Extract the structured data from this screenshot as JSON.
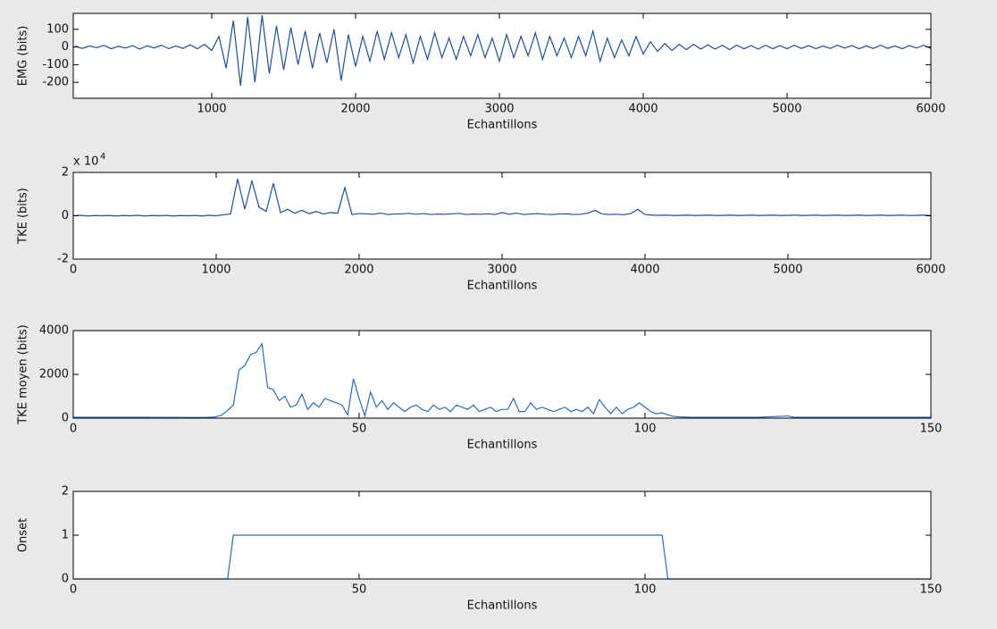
{
  "chart_data": [
    {
      "type": "line",
      "xlabel": "Echantillons",
      "ylabel": "EMG (bits)",
      "xlim": [
        37,
        6000
      ],
      "ylim": [
        -290,
        190
      ],
      "xticks": [
        1000,
        2000,
        3000,
        4000,
        5000,
        6000
      ],
      "yticks": [
        -200,
        -100,
        0,
        100
      ],
      "x": [
        50,
        100,
        150,
        200,
        250,
        300,
        350,
        400,
        450,
        500,
        550,
        600,
        650,
        700,
        750,
        800,
        850,
        900,
        950,
        1000,
        1050,
        1100,
        1150,
        1200,
        1250,
        1300,
        1350,
        1400,
        1450,
        1500,
        1550,
        1600,
        1650,
        1700,
        1750,
        1800,
        1850,
        1900,
        1950,
        2000,
        2050,
        2100,
        2150,
        2200,
        2250,
        2300,
        2350,
        2400,
        2450,
        2500,
        2550,
        2600,
        2650,
        2700,
        2750,
        2800,
        2850,
        2900,
        2950,
        3000,
        3050,
        3100,
        3150,
        3200,
        3250,
        3300,
        3350,
        3400,
        3450,
        3500,
        3550,
        3600,
        3650,
        3700,
        3750,
        3800,
        3850,
        3900,
        3950,
        4000,
        4050,
        4100,
        4150,
        4200,
        4250,
        4300,
        4350,
        4400,
        4450,
        4500,
        4550,
        4600,
        4650,
        4700,
        4750,
        4800,
        4850,
        4900,
        4950,
        5000,
        5050,
        5100,
        5150,
        5200,
        5250,
        5300,
        5350,
        5400,
        5450,
        5500,
        5550,
        5600,
        5650,
        5700,
        5750,
        5800,
        5850,
        5900,
        5950,
        6000
      ],
      "series": [
        {
          "color": "#1f4f96",
          "values": [
            5,
            -8,
            6,
            -4,
            9,
            -10,
            4,
            -6,
            8,
            -12,
            7,
            -5,
            10,
            -9,
            6,
            -8,
            12,
            -10,
            15,
            -20,
            60,
            -120,
            150,
            -220,
            170,
            -200,
            180,
            -150,
            120,
            -130,
            110,
            -100,
            90,
            -120,
            80,
            -90,
            100,
            -190,
            70,
            -110,
            60,
            -80,
            90,
            -70,
            80,
            -60,
            70,
            -90,
            60,
            -70,
            80,
            -60,
            50,
            -70,
            60,
            -50,
            70,
            -60,
            50,
            -80,
            70,
            -60,
            60,
            -50,
            80,
            -70,
            60,
            -50,
            50,
            -60,
            60,
            -50,
            90,
            -80,
            50,
            -60,
            40,
            -50,
            60,
            -40,
            30,
            -25,
            20,
            -20,
            15,
            -15,
            15,
            -12,
            12,
            -12,
            10,
            -15,
            10,
            -10,
            8,
            -12,
            10,
            -10,
            8,
            -10,
            10,
            -8,
            8,
            -10,
            6,
            -8,
            10,
            -6,
            8,
            -10,
            6,
            -8,
            10,
            -8,
            6,
            -10,
            8,
            -6,
            10,
            -8
          ]
        }
      ]
    },
    {
      "type": "line",
      "xlabel": "Echantillons",
      "ylabel": "TKE (bits)",
      "exponent_base": "x 10",
      "exponent": "4",
      "xlim": [
        0,
        6000
      ],
      "ylim": [
        -20000,
        20000
      ],
      "xticks": [
        0,
        1000,
        2000,
        3000,
        4000,
        5000,
        6000
      ],
      "yticks": [
        {
          "value": -20000,
          "label": "-2"
        },
        0,
        {
          "value": 20000,
          "label": "2"
        }
      ],
      "x": [
        0,
        50,
        100,
        150,
        200,
        250,
        300,
        350,
        400,
        450,
        500,
        550,
        600,
        650,
        700,
        750,
        800,
        850,
        900,
        950,
        1000,
        1050,
        1100,
        1150,
        1200,
        1250,
        1300,
        1350,
        1400,
        1450,
        1500,
        1550,
        1600,
        1650,
        1700,
        1750,
        1800,
        1850,
        1900,
        1950,
        2000,
        2050,
        2100,
        2150,
        2200,
        2250,
        2300,
        2350,
        2400,
        2450,
        2500,
        2550,
        2600,
        2650,
        2700,
        2750,
        2800,
        2850,
        2900,
        2950,
        3000,
        3050,
        3100,
        3150,
        3200,
        3250,
        3300,
        3350,
        3400,
        3450,
        3500,
        3550,
        3600,
        3650,
        3700,
        3750,
        3800,
        3850,
        3900,
        3950,
        4000,
        4050,
        4100,
        4150,
        4200,
        4250,
        4300,
        4350,
        4400,
        4450,
        4500,
        4550,
        4600,
        4650,
        4700,
        4750,
        4800,
        4850,
        4900,
        4950,
        5000,
        5050,
        5100,
        5150,
        5200,
        5250,
        5300,
        5350,
        5400,
        5450,
        5500,
        5550,
        5600,
        5650,
        5700,
        5750,
        5800,
        5850,
        5900,
        5950,
        6000
      ],
      "series": [
        {
          "color": "#1f4f96",
          "values": [
            0,
            200,
            -100,
            100,
            0,
            150,
            -100,
            100,
            0,
            200,
            -100,
            100,
            0,
            150,
            -100,
            100,
            0,
            150,
            -100,
            200,
            0,
            500,
            800,
            17000,
            3000,
            16000,
            4000,
            2000,
            15000,
            1500,
            3000,
            1200,
            2500,
            1000,
            2000,
            800,
            1500,
            1200,
            13000,
            600,
            1000,
            900,
            700,
            1200,
            600,
            800,
            900,
            1100,
            700,
            1000,
            600,
            800,
            700,
            900,
            1100,
            600,
            800,
            700,
            900,
            600,
            1500,
            700,
            1200,
            600,
            800,
            1000,
            700,
            600,
            800,
            900,
            600,
            700,
            1200,
            2500,
            800,
            600,
            700,
            500,
            1000,
            3000,
            600,
            300,
            200,
            300,
            100,
            200,
            300,
            100,
            200,
            300,
            100,
            200,
            300,
            100,
            200,
            300,
            100,
            200,
            300,
            100,
            200,
            300,
            100,
            200,
            300,
            100,
            200,
            300,
            100,
            200,
            300,
            100,
            200,
            300,
            100,
            200,
            300,
            100,
            200,
            300,
            100
          ]
        }
      ]
    },
    {
      "type": "line",
      "xlabel": "Echantillons",
      "ylabel": "TKE moyen (bits)",
      "xlim": [
        0,
        150
      ],
      "ylim": [
        0,
        4000
      ],
      "xticks": [
        0,
        50,
        100,
        150
      ],
      "yticks": [
        0,
        2000,
        4000
      ],
      "x": [
        0,
        10,
        20,
        21,
        22,
        23,
        24,
        25,
        26,
        27,
        28,
        29,
        30,
        31,
        32,
        33,
        34,
        35,
        36,
        37,
        38,
        39,
        40,
        41,
        42,
        43,
        44,
        45,
        46,
        47,
        48,
        49,
        50,
        51,
        52,
        53,
        54,
        55,
        56,
        57,
        58,
        59,
        60,
        61,
        62,
        63,
        64,
        65,
        66,
        67,
        68,
        69,
        70,
        71,
        72,
        73,
        74,
        75,
        76,
        77,
        78,
        79,
        80,
        81,
        82,
        83,
        84,
        85,
        86,
        87,
        88,
        89,
        90,
        91,
        92,
        93,
        94,
        95,
        96,
        97,
        98,
        99,
        100,
        101,
        102,
        103,
        104,
        105,
        106,
        107,
        108,
        109,
        110,
        115,
        120,
        125,
        126,
        130,
        140,
        150
      ],
      "series": [
        {
          "color": "#2a6cc0",
          "values": [
            40,
            40,
            30,
            30,
            30,
            30,
            40,
            60,
            150,
            350,
            600,
            2200,
            2400,
            2900,
            3000,
            3400,
            1400,
            1300,
            800,
            1000,
            500,
            600,
            1100,
            400,
            700,
            500,
            900,
            800,
            700,
            600,
            150,
            1800,
            900,
            100,
            1200,
            500,
            800,
            400,
            700,
            500,
            300,
            500,
            600,
            400,
            300,
            600,
            400,
            500,
            300,
            600,
            500,
            400,
            600,
            300,
            400,
            500,
            300,
            400,
            400,
            900,
            300,
            300,
            700,
            400,
            500,
            400,
            300,
            400,
            500,
            300,
            400,
            300,
            500,
            200,
            850,
            500,
            200,
            500,
            200,
            400,
            500,
            700,
            500,
            300,
            200,
            250,
            150,
            80,
            60,
            50,
            40,
            40,
            40,
            40,
            40,
            100,
            40,
            40,
            40,
            40
          ]
        }
      ]
    },
    {
      "type": "line",
      "xlabel": "Echantillons",
      "ylabel": "Onset",
      "xlim": [
        0,
        150
      ],
      "ylim": [
        0,
        2
      ],
      "xticks": [
        0,
        50,
        100,
        150
      ],
      "yticks": [
        0,
        1,
        2
      ],
      "x": [
        0,
        27,
        28,
        103,
        104,
        150
      ],
      "series": [
        {
          "color": "#2a6cc0",
          "values": [
            0,
            0,
            1,
            1,
            0,
            0
          ]
        }
      ]
    }
  ]
}
